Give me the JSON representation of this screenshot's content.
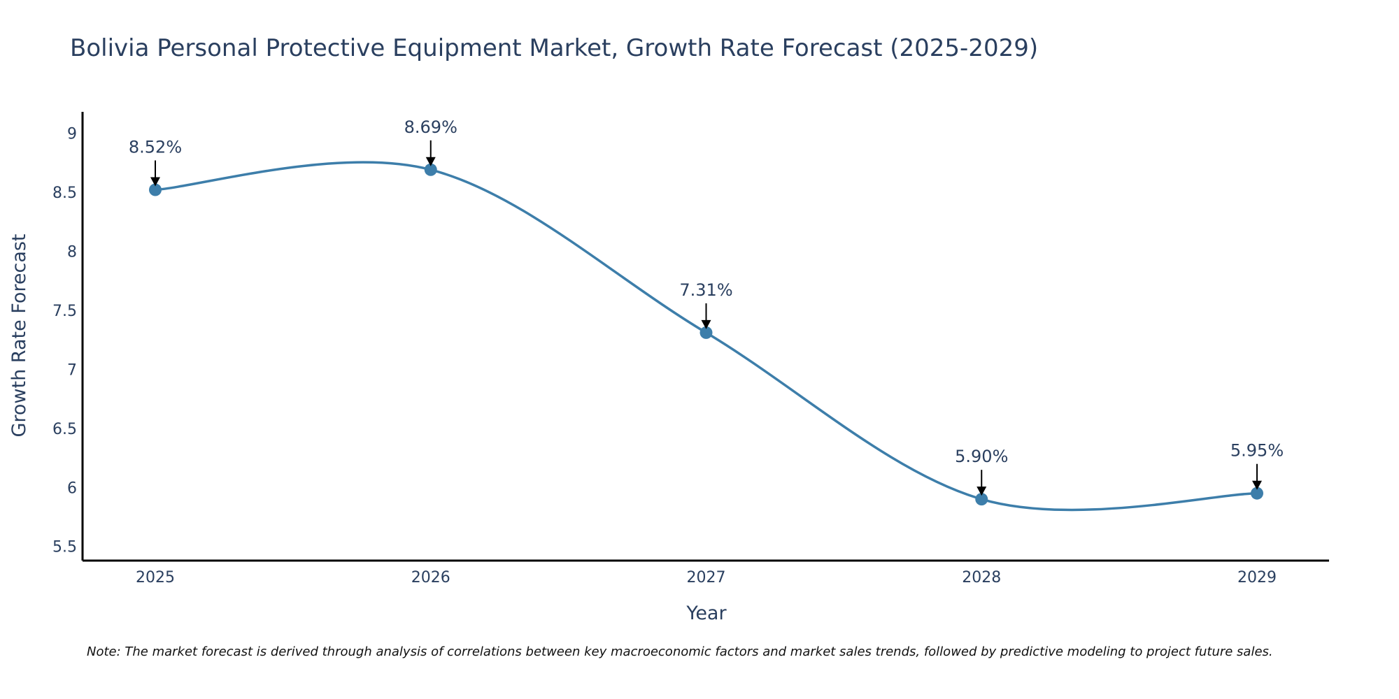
{
  "chart_data": {
    "type": "line",
    "title": "Bolivia Personal Protective Equipment Market, Growth Rate Forecast (2025-2029)",
    "xlabel": "Year",
    "ylabel": "Growth Rate Forecast",
    "categories": [
      "2025",
      "2026",
      "2027",
      "2028",
      "2029"
    ],
    "series": [
      {
        "name": "Growth Rate Forecast",
        "values": [
          8.52,
          8.69,
          7.31,
          5.9,
          5.95
        ]
      }
    ],
    "data_labels": [
      "8.52%",
      "8.69%",
      "7.31%",
      "5.90%",
      "5.95%"
    ],
    "ylim": [
      5.38,
      9.18
    ],
    "y_ticks": [
      "5.5",
      "6",
      "6.5",
      "7",
      "7.5",
      "8",
      "8.5",
      "9"
    ],
    "grid": false,
    "line_shape": "spline",
    "colors": {
      "line": "#3d7eaa",
      "marker": "#3d7eaa",
      "text": "#2a3f5f",
      "arrow": "#000000"
    },
    "note": "Note: The market forecast is derived through analysis of correlations between key macroeconomic factors and market sales trends, followed by predictive modeling to project future sales."
  }
}
